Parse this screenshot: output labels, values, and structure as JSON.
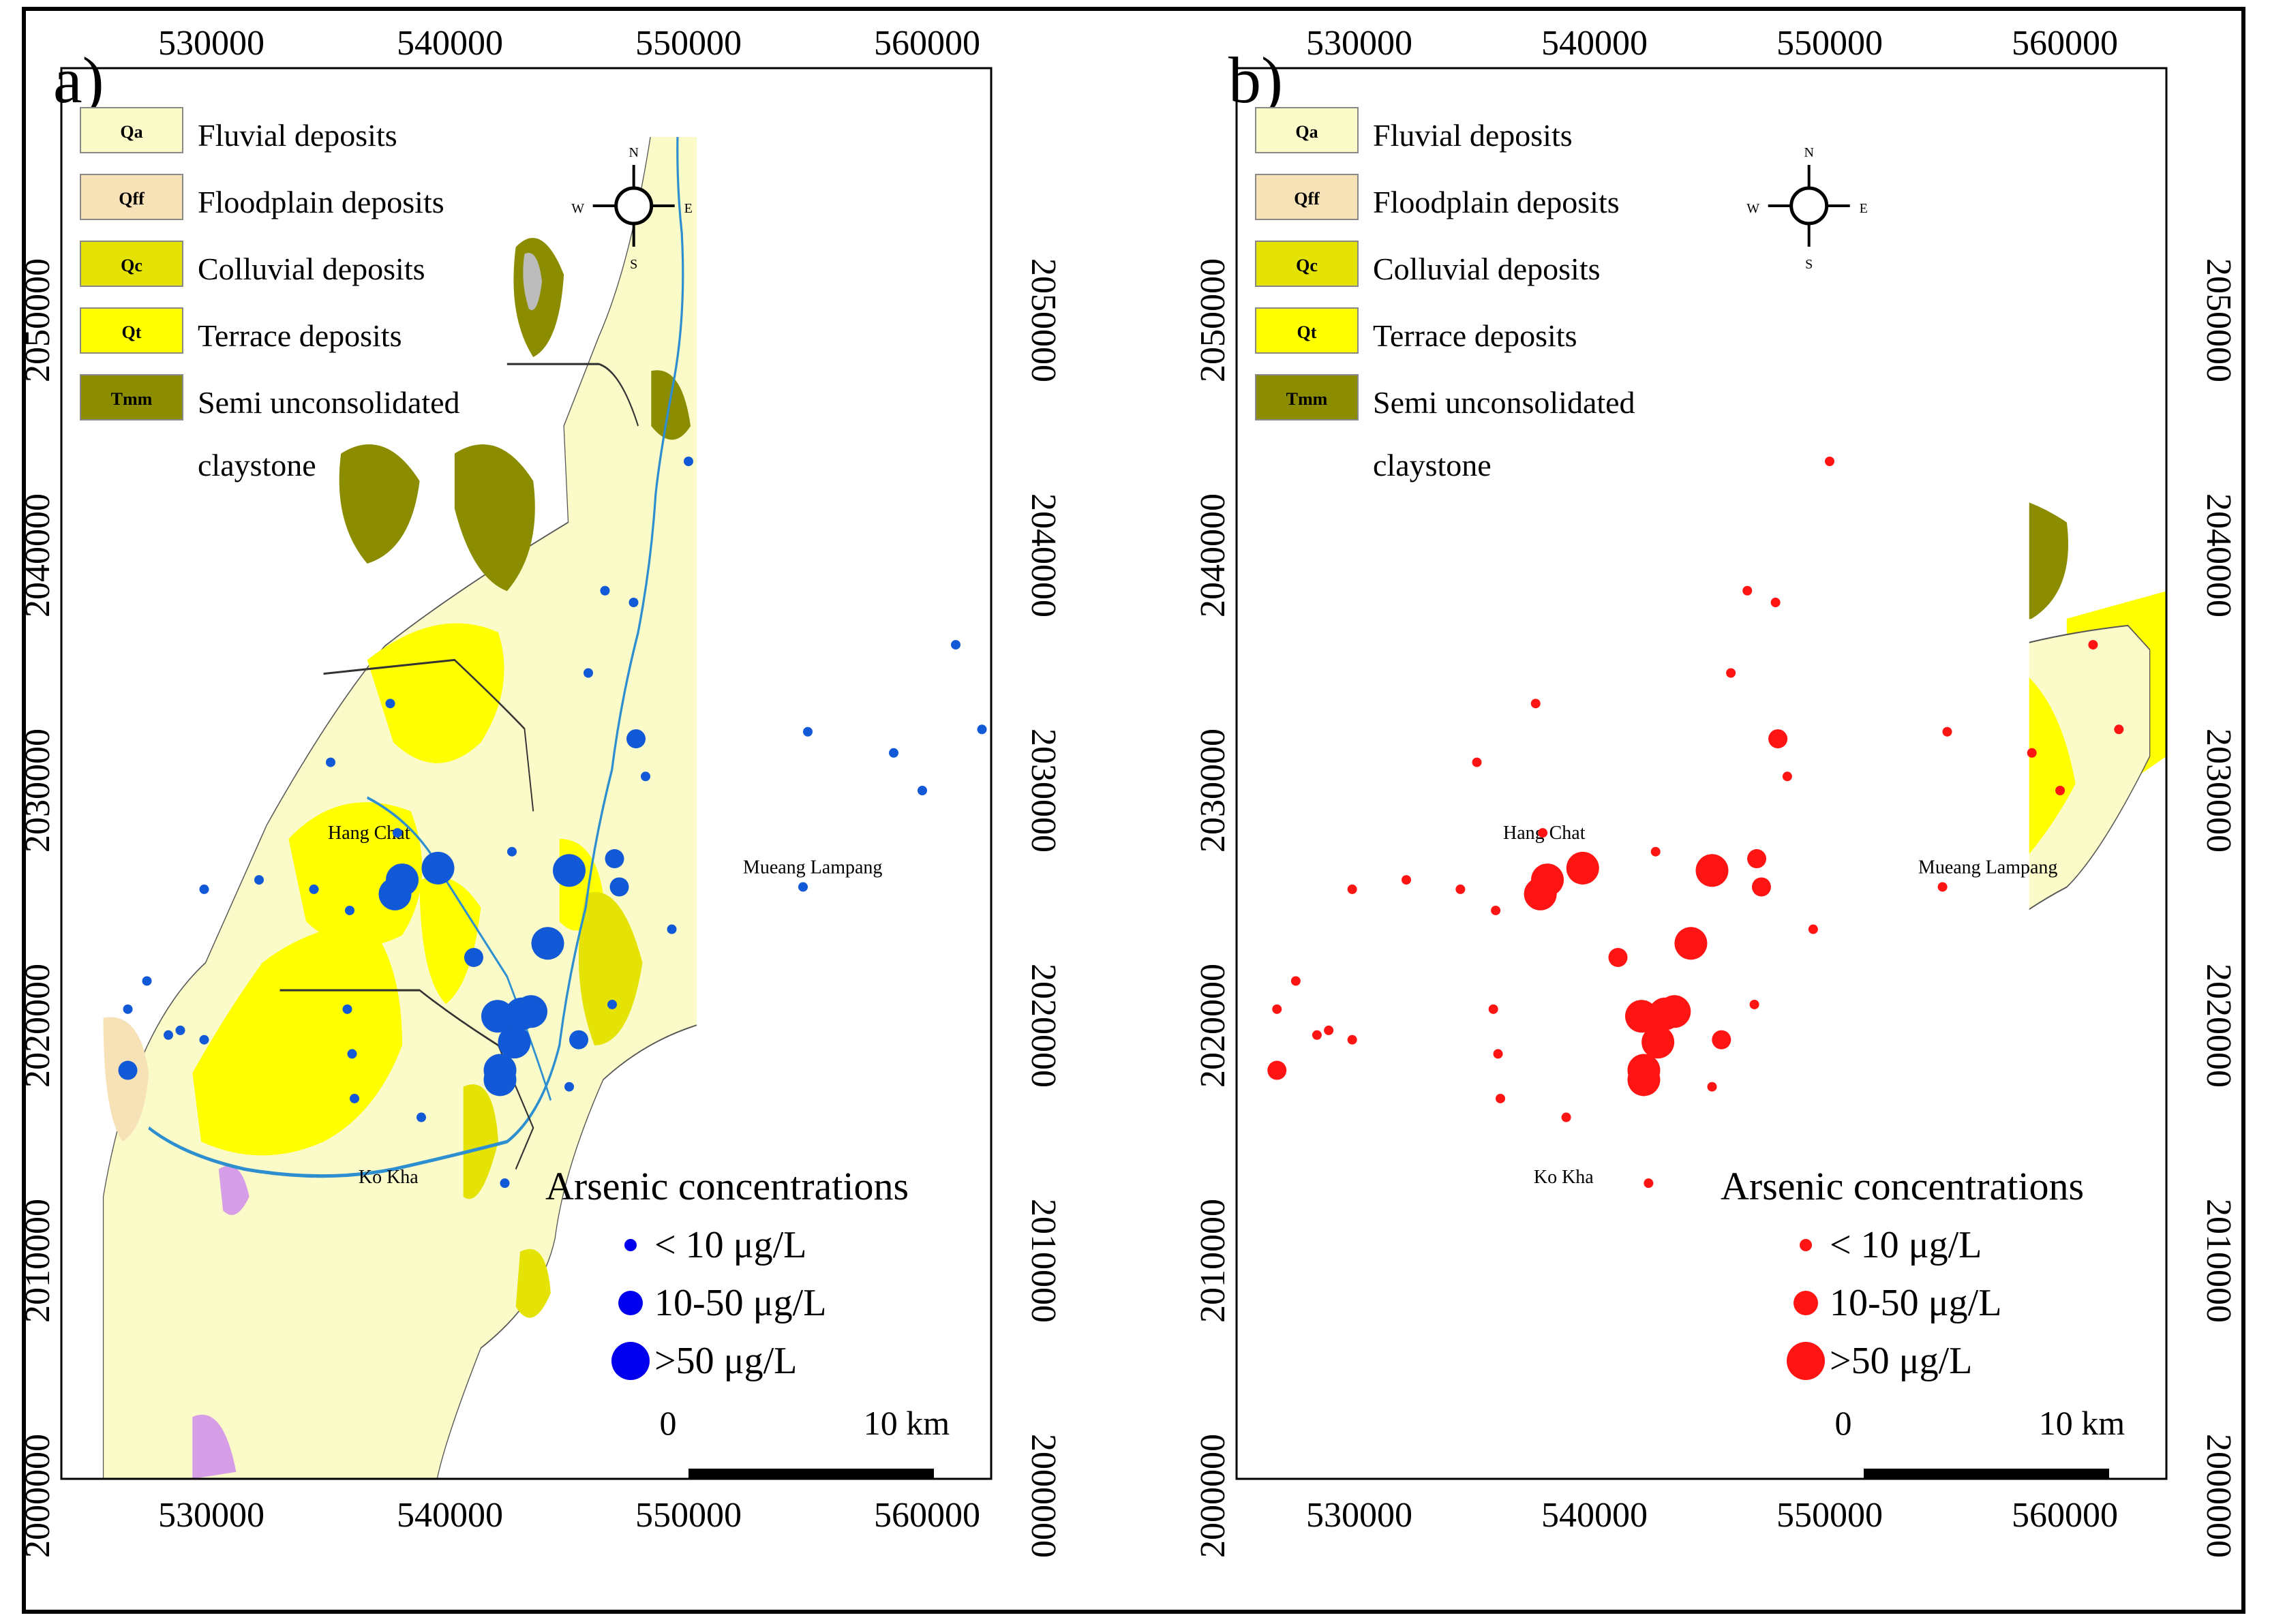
{
  "panels": [
    {
      "id": "a",
      "label": "a)",
      "point_color": "#1159d6",
      "legend_point_color": "#0000ee",
      "x_ticks": [
        "530000",
        "540000",
        "550000",
        "560000"
      ],
      "y_ticks": [
        "2050000",
        "2040000",
        "2030000",
        "2020000",
        "2010000",
        "2000000"
      ]
    },
    {
      "id": "b",
      "label": "b)",
      "point_color": "#ff1414",
      "legend_point_color": "#ff1414",
      "x_ticks": [
        "530000",
        "540000",
        "550000",
        "560000"
      ],
      "y_ticks": [
        "2050000",
        "2040000",
        "2030000",
        "2020000",
        "2010000",
        "2000000"
      ]
    }
  ],
  "geology_legend": [
    {
      "code": "Qa",
      "label": "Fluvial   deposits",
      "color": "#fbfbc9"
    },
    {
      "code": "Qff",
      "label": "Floodplain  deposits",
      "color": "#f7e2b8"
    },
    {
      "code": "Qc",
      "label": "Colluvial  deposits",
      "color": "#e4e305"
    },
    {
      "code": "Qt",
      "label": "Terrace  deposits",
      "color": "#ffff00"
    },
    {
      "code": "Tmm",
      "label": "Semi unconsolidated",
      "label2": "claystone",
      "color": "#8c8c00"
    }
  ],
  "compass": {
    "n": "N",
    "s": "S",
    "e": "E",
    "w": "W"
  },
  "places": [
    "Hang Chat",
    "Mueang Lampang",
    "Ko Kha"
  ],
  "arsenic_legend": {
    "title": "Arsenic  concentrations",
    "classes": [
      "< 10 μg/L",
      "10-50 μg/L",
      ">50 μg/L"
    ]
  },
  "scale_bar": {
    "start": "0",
    "end": "10 km"
  },
  "wells": [
    {
      "x": 550000,
      "y": 2044000,
      "cls": 0
    },
    {
      "x": 546500,
      "y": 2038500,
      "cls": 0
    },
    {
      "x": 547700,
      "y": 2038000,
      "cls": 0
    },
    {
      "x": 545800,
      "y": 2035000,
      "cls": 0
    },
    {
      "x": 561200,
      "y": 2036200,
      "cls": 0
    },
    {
      "x": 537500,
      "y": 2033700,
      "cls": 0
    },
    {
      "x": 547800,
      "y": 2032200,
      "cls": 1
    },
    {
      "x": 555000,
      "y": 2032500,
      "cls": 0
    },
    {
      "x": 562300,
      "y": 2032600,
      "cls": 0
    },
    {
      "x": 558600,
      "y": 2031600,
      "cls": 0
    },
    {
      "x": 559800,
      "y": 2030000,
      "cls": 0
    },
    {
      "x": 535000,
      "y": 2031200,
      "cls": 0
    },
    {
      "x": 548200,
      "y": 2030600,
      "cls": 0
    },
    {
      "x": 537800,
      "y": 2028200,
      "cls": 0
    },
    {
      "x": 542600,
      "y": 2027400,
      "cls": 0
    },
    {
      "x": 546900,
      "y": 2027100,
      "cls": 1
    },
    {
      "x": 539500,
      "y": 2026700,
      "cls": 2
    },
    {
      "x": 545000,
      "y": 2026600,
      "cls": 2
    },
    {
      "x": 547100,
      "y": 2025900,
      "cls": 1
    },
    {
      "x": 537700,
      "y": 2025600,
      "cls": 2
    },
    {
      "x": 538000,
      "y": 2026200,
      "cls": 2
    },
    {
      "x": 529700,
      "y": 2025800,
      "cls": 0
    },
    {
      "x": 532000,
      "y": 2026200,
      "cls": 0
    },
    {
      "x": 534300,
      "y": 2025800,
      "cls": 0
    },
    {
      "x": 535800,
      "y": 2024900,
      "cls": 0
    },
    {
      "x": 554800,
      "y": 2025900,
      "cls": 0
    },
    {
      "x": 549300,
      "y": 2024100,
      "cls": 0
    },
    {
      "x": 544100,
      "y": 2023500,
      "cls": 2
    },
    {
      "x": 541000,
      "y": 2022900,
      "cls": 1
    },
    {
      "x": 527300,
      "y": 2021900,
      "cls": 0
    },
    {
      "x": 526500,
      "y": 2020700,
      "cls": 0
    },
    {
      "x": 528200,
      "y": 2019600,
      "cls": 0
    },
    {
      "x": 528700,
      "y": 2019800,
      "cls": 0
    },
    {
      "x": 529700,
      "y": 2019400,
      "cls": 0
    },
    {
      "x": 535700,
      "y": 2020700,
      "cls": 0
    },
    {
      "x": 542000,
      "y": 2020400,
      "cls": 2
    },
    {
      "x": 543000,
      "y": 2020500,
      "cls": 2
    },
    {
      "x": 543400,
      "y": 2020600,
      "cls": 2
    },
    {
      "x": 546800,
      "y": 2020900,
      "cls": 0
    },
    {
      "x": 545400,
      "y": 2019400,
      "cls": 1
    },
    {
      "x": 542700,
      "y": 2019300,
      "cls": 2
    },
    {
      "x": 535900,
      "y": 2018800,
      "cls": 0
    },
    {
      "x": 526500,
      "y": 2018100,
      "cls": 1
    },
    {
      "x": 542100,
      "y": 2018100,
      "cls": 2
    },
    {
      "x": 542100,
      "y": 2017700,
      "cls": 2
    },
    {
      "x": 536000,
      "y": 2016900,
      "cls": 0
    },
    {
      "x": 545000,
      "y": 2017400,
      "cls": 0
    },
    {
      "x": 538800,
      "y": 2016100,
      "cls": 0
    },
    {
      "x": 542300,
      "y": 2013300,
      "cls": 0
    }
  ]
}
